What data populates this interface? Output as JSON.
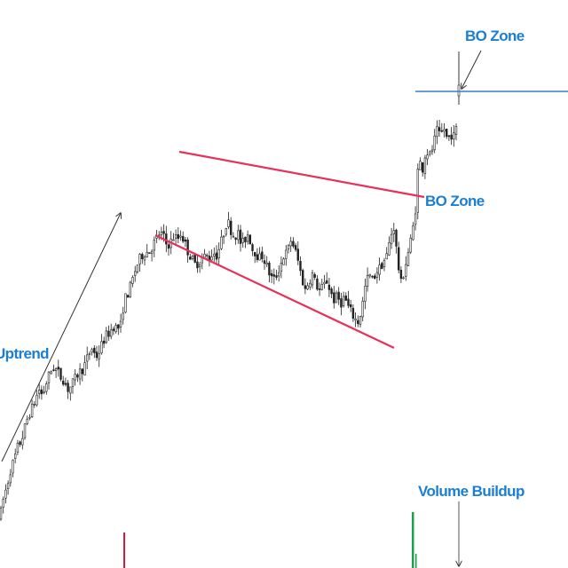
{
  "chart_data": {
    "type": "candlestick",
    "title": "",
    "xlabel": "",
    "ylabel": "",
    "grid": false,
    "colors": {
      "candle": "#222222",
      "pattern_line": "#e8315a",
      "resistance_line": "#2f7fd6",
      "label": "#1a7fd4",
      "arrow": "#333333",
      "volume_up": "#1aa34a",
      "volume_down": "#d81b3c"
    },
    "annotations": {
      "uptrend": "Uptrend",
      "bo_zone_top": "BO Zone",
      "bo_zone_pattern": "BO Zone",
      "volume_buildup": "Volume Buildup"
    },
    "pattern": "broadening wedge",
    "price_path": [
      [
        0,
        12
      ],
      [
        4,
        18
      ],
      [
        8,
        22
      ],
      [
        12,
        27
      ],
      [
        16,
        30
      ],
      [
        20,
        34
      ],
      [
        24,
        36
      ],
      [
        28,
        40
      ],
      [
        32,
        44
      ],
      [
        36,
        46
      ],
      [
        40,
        49
      ],
      [
        44,
        52
      ],
      [
        48,
        50
      ],
      [
        52,
        54
      ],
      [
        56,
        57
      ],
      [
        60,
        59
      ],
      [
        64,
        58
      ],
      [
        68,
        56
      ],
      [
        72,
        55
      ],
      [
        76,
        52
      ],
      [
        80,
        53
      ],
      [
        84,
        55
      ],
      [
        88,
        57
      ],
      [
        92,
        58
      ],
      [
        96,
        60
      ],
      [
        100,
        63
      ],
      [
        104,
        65
      ],
      [
        108,
        62
      ],
      [
        112,
        64
      ],
      [
        116,
        67
      ],
      [
        120,
        69
      ],
      [
        124,
        70
      ],
      [
        128,
        72
      ],
      [
        132,
        71
      ],
      [
        136,
        72
      ],
      [
        140,
        80
      ],
      [
        144,
        82
      ],
      [
        148,
        85
      ],
      [
        152,
        89
      ],
      [
        156,
        92
      ],
      [
        160,
        94
      ],
      [
        164,
        95
      ],
      [
        168,
        95
      ],
      [
        172,
        97
      ],
      [
        176,
        99
      ],
      [
        180,
        101
      ],
      [
        184,
        100
      ],
      [
        188,
        97
      ],
      [
        192,
        98
      ],
      [
        196,
        100
      ],
      [
        200,
        99
      ],
      [
        204,
        101
      ],
      [
        208,
        98
      ],
      [
        212,
        95
      ],
      [
        216,
        93
      ],
      [
        220,
        91
      ],
      [
        224,
        92
      ],
      [
        228,
        93
      ],
      [
        232,
        94
      ],
      [
        236,
        93
      ],
      [
        240,
        95
      ],
      [
        244,
        94
      ],
      [
        248,
        97
      ],
      [
        252,
        101
      ],
      [
        256,
        105
      ],
      [
        260,
        102
      ],
      [
        264,
        100
      ],
      [
        268,
        101
      ],
      [
        272,
        97
      ],
      [
        276,
        99
      ],
      [
        280,
        101
      ],
      [
        284,
        96
      ],
      [
        288,
        95
      ],
      [
        292,
        93
      ],
      [
        296,
        94
      ],
      [
        300,
        91
      ],
      [
        304,
        88
      ],
      [
        308,
        86
      ],
      [
        312,
        88
      ],
      [
        316,
        91
      ],
      [
        320,
        94
      ],
      [
        324,
        95
      ],
      [
        328,
        99
      ],
      [
        332,
        96
      ],
      [
        336,
        92
      ],
      [
        340,
        87
      ],
      [
        344,
        83
      ],
      [
        348,
        86
      ],
      [
        352,
        88
      ],
      [
        356,
        85
      ],
      [
        360,
        83
      ],
      [
        364,
        84
      ],
      [
        368,
        86
      ],
      [
        372,
        83
      ],
      [
        376,
        80
      ],
      [
        380,
        81
      ],
      [
        384,
        79
      ],
      [
        388,
        81
      ],
      [
        392,
        78
      ],
      [
        396,
        76
      ],
      [
        400,
        74
      ],
      [
        404,
        73
      ],
      [
        408,
        78
      ],
      [
        412,
        85
      ],
      [
        416,
        88
      ],
      [
        420,
        86
      ],
      [
        424,
        89
      ],
      [
        428,
        90
      ],
      [
        432,
        92
      ],
      [
        436,
        94
      ],
      [
        440,
        100
      ],
      [
        444,
        103
      ],
      [
        448,
        92
      ],
      [
        452,
        85
      ],
      [
        456,
        90
      ],
      [
        460,
        95
      ],
      [
        464,
        100
      ],
      [
        468,
        108
      ],
      [
        470,
        118
      ],
      [
        472,
        124
      ],
      [
        476,
        121
      ],
      [
        480,
        127
      ],
      [
        484,
        125
      ],
      [
        488,
        128
      ],
      [
        492,
        133
      ],
      [
        496,
        131
      ],
      [
        500,
        134
      ],
      [
        504,
        130
      ],
      [
        508,
        132
      ],
      [
        512,
        131
      ],
      [
        516,
        136
      ]
    ]
  }
}
